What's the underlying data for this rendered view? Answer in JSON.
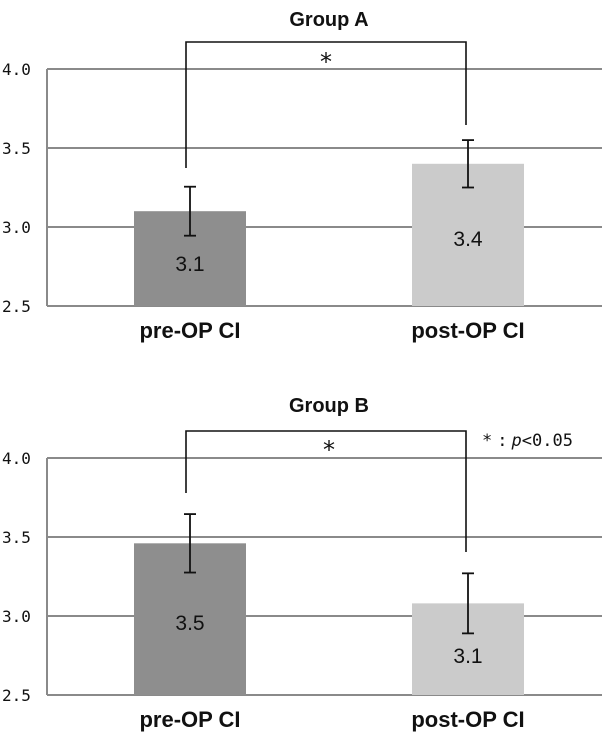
{
  "chart_data": [
    {
      "type": "bar",
      "title": "Group A",
      "categories": [
        "pre-OP CI",
        "post-OP CI"
      ],
      "values": [
        3.1,
        3.4
      ],
      "value_labels": [
        "3.1",
        "3.4"
      ],
      "error_bars": [
        0.155,
        0.15
      ],
      "ylim": [
        2.5,
        4.0
      ],
      "yticks": [
        "2.5",
        "3.0",
        "3.5",
        "4.0"
      ],
      "significance_marker": "*",
      "bar_colors": [
        "#8e8e8e",
        "#cbcbcb"
      ],
      "grid": true
    },
    {
      "type": "bar",
      "title": "Group B",
      "categories": [
        "pre-OP CI",
        "post-OP CI"
      ],
      "values": [
        3.46,
        3.08
      ],
      "value_labels": [
        "3.5",
        "3.1"
      ],
      "error_bars": [
        0.185,
        0.19
      ],
      "ylim": [
        2.5,
        4.0
      ],
      "yticks": [
        "2.5",
        "3.0",
        "3.5",
        "4.0"
      ],
      "significance_marker": "*",
      "bar_colors": [
        "#8e8e8e",
        "#cbcbcb"
      ],
      "grid": true,
      "note": {
        "marker": "*",
        "separator": ":",
        "p": "p",
        "rest": "<0.05"
      }
    }
  ]
}
